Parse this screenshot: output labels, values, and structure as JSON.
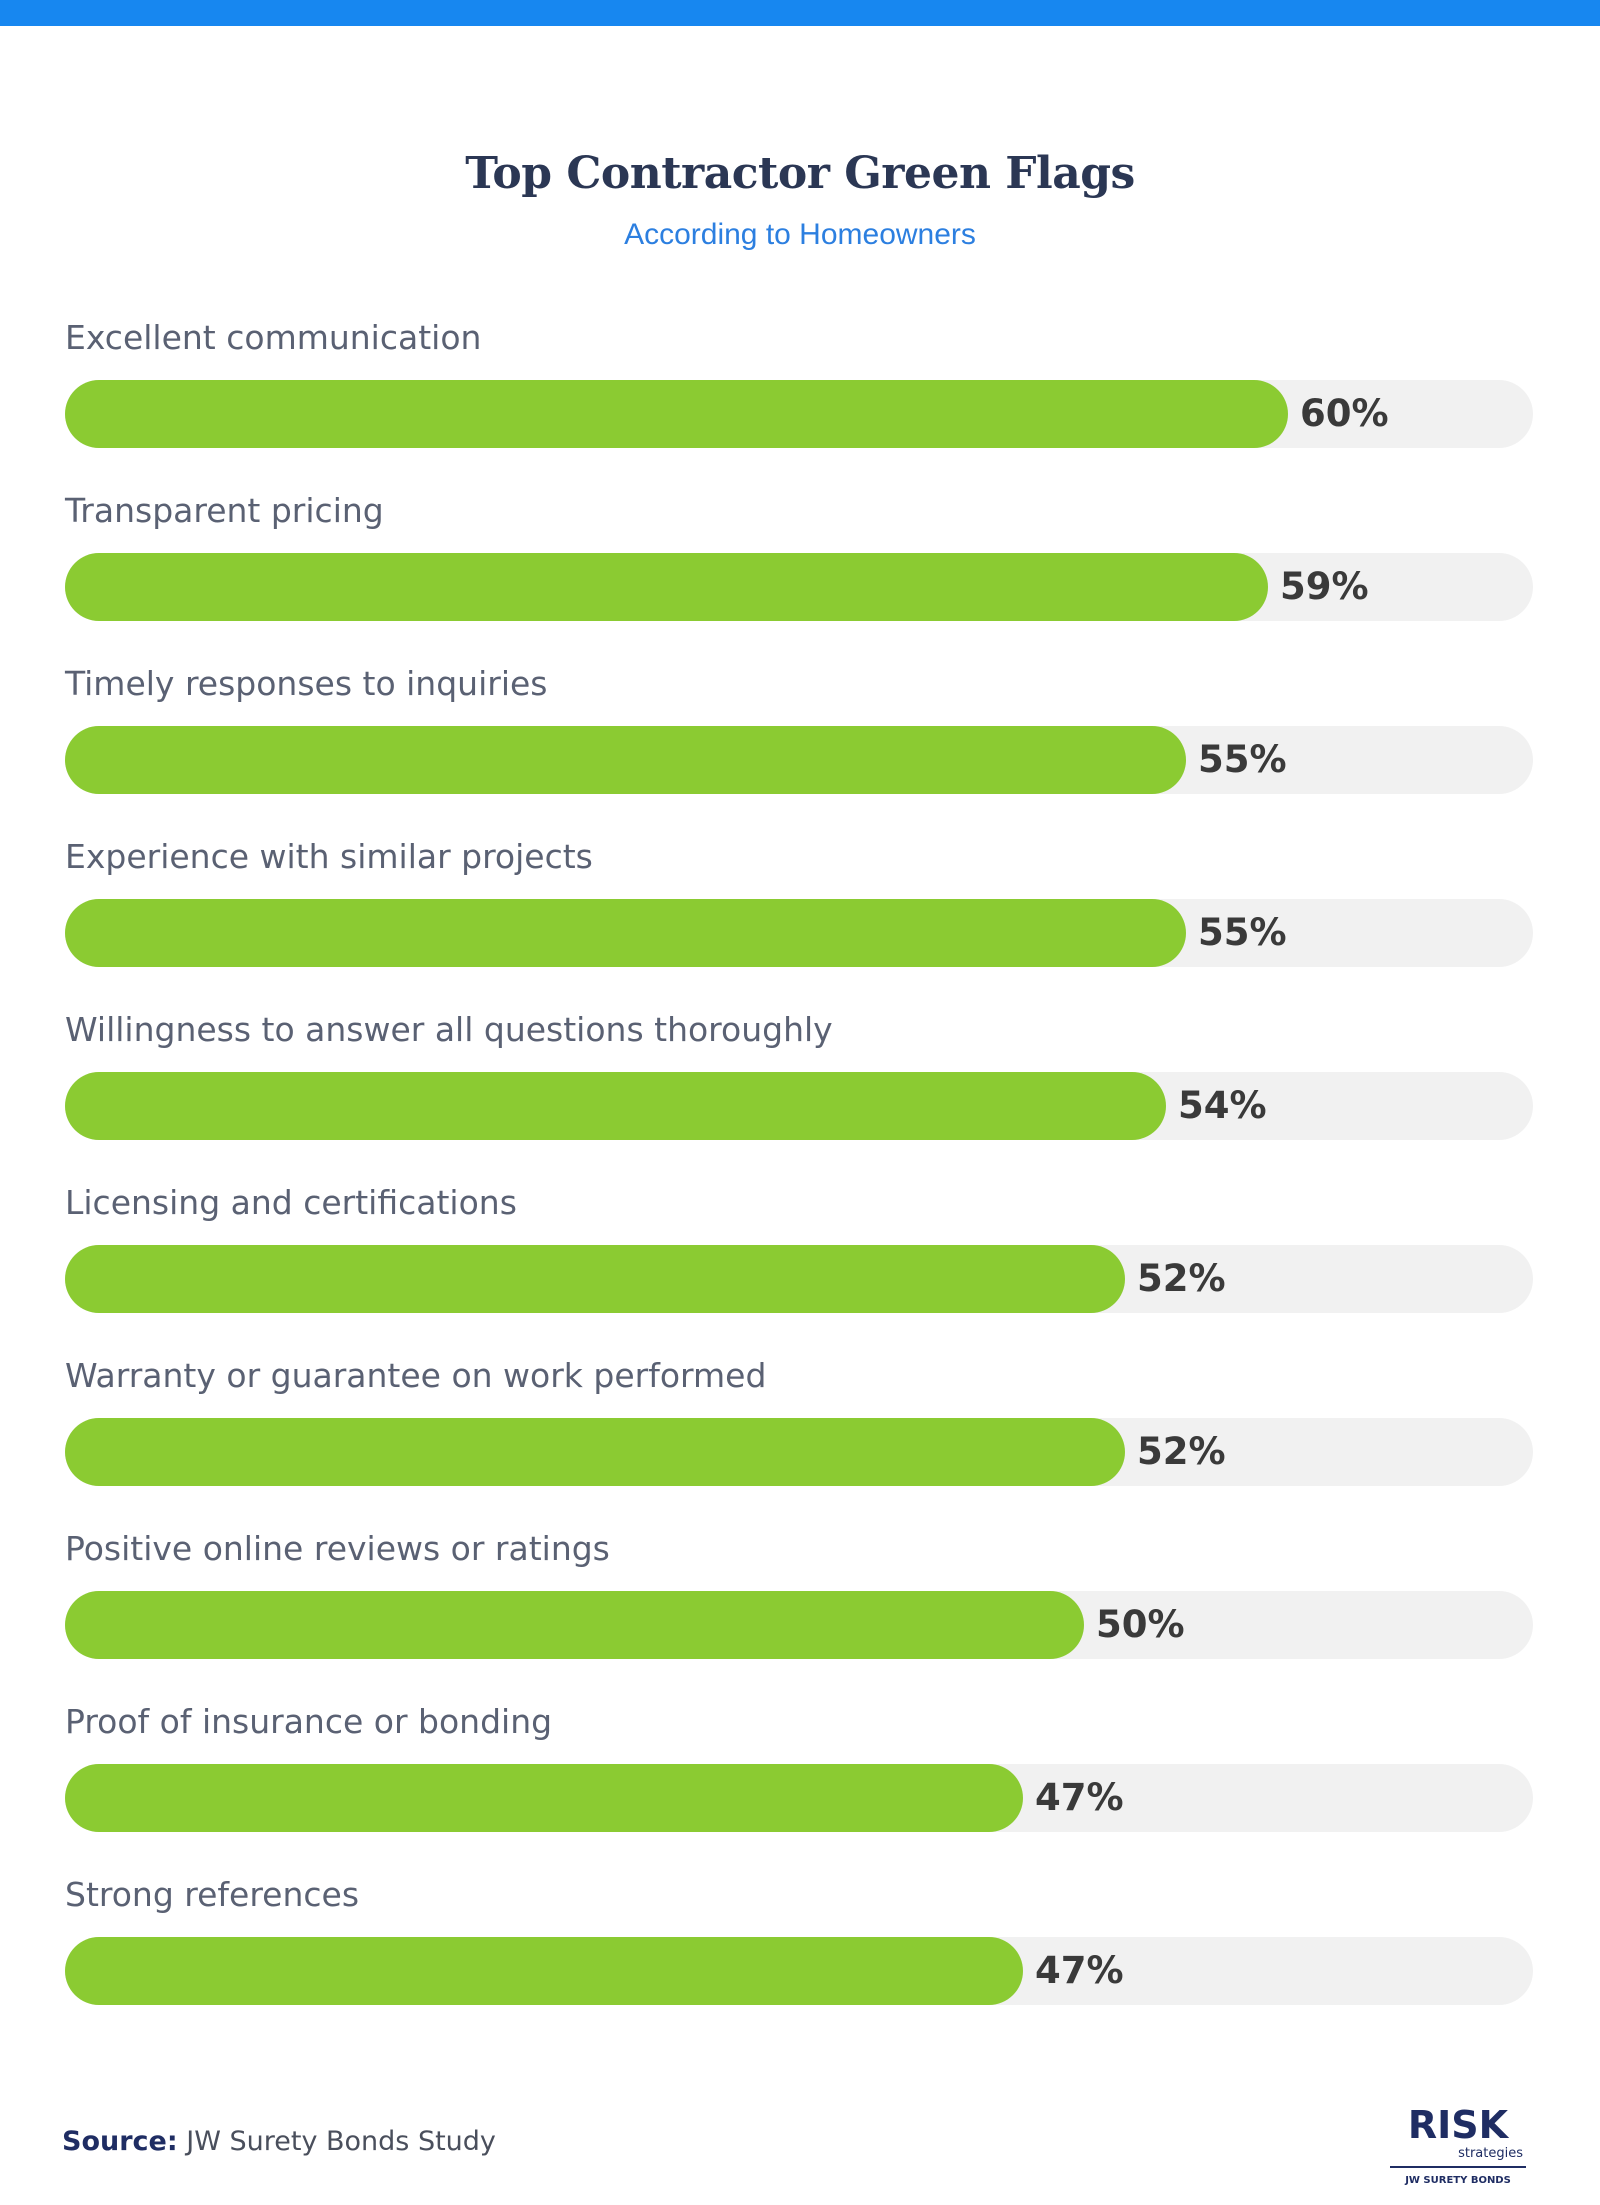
{
  "colors": {
    "accent_stripe": "#1787f0",
    "bar_fill": "#8bcb32",
    "bar_track": "#f1f1f1",
    "title": "#2b3754",
    "subtitle": "#2c7fe0",
    "logo": "#1f2d63"
  },
  "chart_data": {
    "type": "bar",
    "orientation": "horizontal",
    "title": "Top Contractor Green Flags",
    "subtitle": "According to Homeowners",
    "categories": [
      "Excellent communication",
      "Transparent pricing",
      "Timely responses to inquiries",
      "Experience with similar projects",
      "Willingness to answer all questions thoroughly",
      "Licensing and certifications",
      "Warranty or guarantee on work performed",
      "Positive online reviews or ratings",
      "Proof of insurance or bonding",
      "Strong references"
    ],
    "values": [
      60,
      59,
      55,
      55,
      54,
      52,
      52,
      50,
      47,
      47
    ],
    "value_labels": [
      "60%",
      "59%",
      "55%",
      "55%",
      "54%",
      "52%",
      "52%",
      "50%",
      "47%",
      "47%"
    ],
    "xlim": [
      0,
      72
    ],
    "grid": false,
    "legend": "none"
  },
  "footer": {
    "source_key": "Source:",
    "source_text": "JW Surety Bonds Study"
  },
  "logo": {
    "name": "RISK",
    "tagline": "strategies",
    "sub": "JW SURETY BONDS"
  }
}
